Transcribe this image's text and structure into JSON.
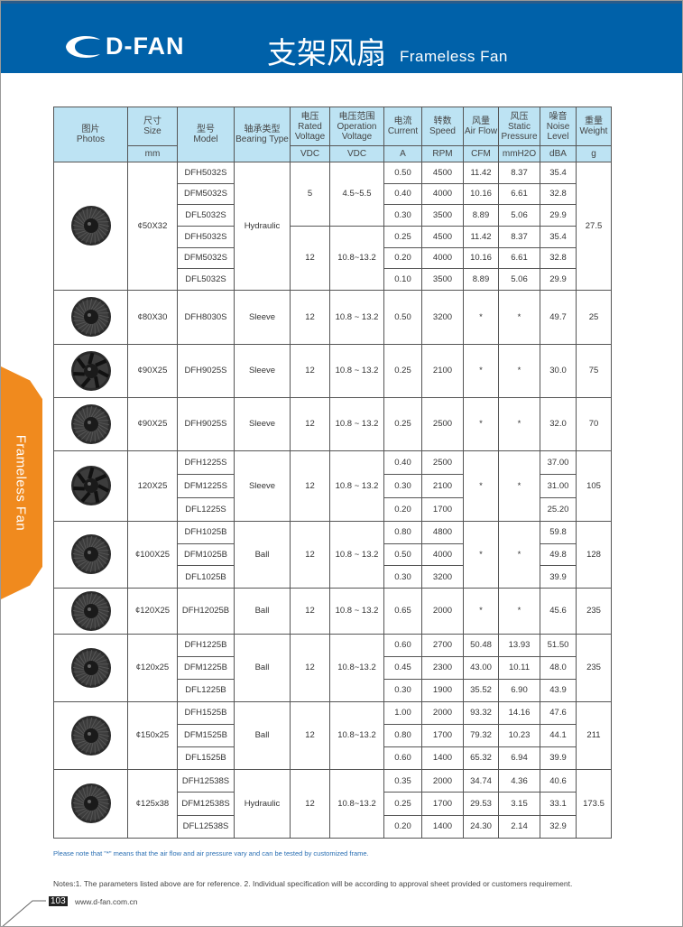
{
  "header": {
    "brand": "D-FAN",
    "title_cn": "支架风扇",
    "title_en": "Frameless Fan",
    "color": "#0061a9"
  },
  "side_tab": {
    "label": "Frameless Fan",
    "color": "#f08a1e"
  },
  "table": {
    "columns": [
      {
        "cn": "图片",
        "en": "Photos",
        "unit": ""
      },
      {
        "cn": "尺寸",
        "en": "Size",
        "unit": "mm"
      },
      {
        "cn": "型号",
        "en": "Model",
        "unit": ""
      },
      {
        "cn": "轴承类型",
        "en": "Bearing Type",
        "unit": ""
      },
      {
        "cn": "电压",
        "en": "Rated Voltage",
        "unit": "VDC"
      },
      {
        "cn": "电压范围",
        "en": "Operation Voltage",
        "unit": "VDC"
      },
      {
        "cn": "电流",
        "en": "Current",
        "unit": "A"
      },
      {
        "cn": "转数",
        "en": "Speed",
        "unit": "RPM"
      },
      {
        "cn": "风量",
        "en": "Air Flow",
        "unit": "CFM"
      },
      {
        "cn": "风压",
        "en": "Static Pressure",
        "unit": "mmH2O"
      },
      {
        "cn": "噪音",
        "en": "Noise Level",
        "unit": "dBA"
      },
      {
        "cn": "重量",
        "en": "Weight",
        "unit": "g"
      }
    ],
    "groups": [
      {
        "photo": "blower-fan-icon",
        "size": "¢50X32",
        "bearing": "Hydraulic",
        "weight": "27.5",
        "flow_merged": false,
        "blocks": [
          {
            "rated": "5",
            "range": "4.5~5.5",
            "rows": [
              {
                "model": "DFH5032S",
                "current": "0.50",
                "speed": "4500",
                "flow": "11.42",
                "pressure": "8.37",
                "noise": "35.4"
              },
              {
                "model": "DFM5032S",
                "current": "0.40",
                "speed": "4000",
                "flow": "10.16",
                "pressure": "6.61",
                "noise": "32.8"
              },
              {
                "model": "DFL5032S",
                "current": "0.30",
                "speed": "3500",
                "flow": "8.89",
                "pressure": "5.06",
                "noise": "29.9"
              }
            ]
          },
          {
            "rated": "12",
            "range": "10.8~13.2",
            "rows": [
              {
                "model": "DFH5032S",
                "current": "0.25",
                "speed": "4500",
                "flow": "11.42",
                "pressure": "8.37",
                "noise": "35.4"
              },
              {
                "model": "DFM5032S",
                "current": "0.20",
                "speed": "4000",
                "flow": "10.16",
                "pressure": "6.61",
                "noise": "32.8"
              },
              {
                "model": "DFL5032S",
                "current": "0.10",
                "speed": "3500",
                "flow": "8.89",
                "pressure": "5.06",
                "noise": "29.9"
              }
            ]
          }
        ]
      },
      {
        "photo": "blower-fan-icon",
        "size": "¢80X30",
        "bearing": "Sleeve",
        "weight": "25",
        "flow_merged": false,
        "blocks": [
          {
            "rated": "12",
            "range": "10.8 ~ 13.2",
            "rows": [
              {
                "model": "DFH8030S",
                "current": "0.50",
                "speed": "3200",
                "flow": "*",
                "pressure": "*",
                "noise": "49.7"
              }
            ]
          }
        ]
      },
      {
        "photo": "axial-fan-icon",
        "size": "¢90X25",
        "bearing": "Sleeve",
        "weight": "75",
        "flow_merged": false,
        "blocks": [
          {
            "rated": "12",
            "range": "10.8 ~ 13.2",
            "rows": [
              {
                "model": "DFH9025S",
                "current": "0.25",
                "speed": "2100",
                "flow": "*",
                "pressure": "*",
                "noise": "30.0"
              }
            ]
          }
        ]
      },
      {
        "photo": "blower-fan-icon",
        "size": "¢90X25",
        "bearing": "Sleeve",
        "weight": "70",
        "flow_merged": false,
        "blocks": [
          {
            "rated": "12",
            "range": "10.8 ~ 13.2",
            "rows": [
              {
                "model": "DFH9025S",
                "current": "0.25",
                "speed": "2500",
                "flow": "*",
                "pressure": "*",
                "noise": "32.0"
              }
            ]
          }
        ]
      },
      {
        "photo": "axial-fan-icon",
        "size": "120X25",
        "bearing": "Sleeve",
        "weight": "105",
        "flow_merged": true,
        "blocks": [
          {
            "rated": "12",
            "range": "10.8 ~ 13.2",
            "rows": [
              {
                "model": "DFH1225S",
                "current": "0.40",
                "speed": "2500",
                "flow": "*",
                "pressure": "*",
                "noise": "37.00"
              },
              {
                "model": "DFM1225S",
                "current": "0.30",
                "speed": "2100",
                "noise": "31.00"
              },
              {
                "model": "DFL1225S",
                "current": "0.20",
                "speed": "1700",
                "noise": "25.20"
              }
            ]
          }
        ]
      },
      {
        "photo": "blower-fan-icon",
        "size": "¢100X25",
        "bearing": "Ball",
        "weight": "128",
        "flow_merged": true,
        "blocks": [
          {
            "rated": "12",
            "range": "10.8 ~ 13.2",
            "rows": [
              {
                "model": "DFH1025B",
                "current": "0.80",
                "speed": "4800",
                "flow": "*",
                "pressure": "*",
                "noise": "59.8"
              },
              {
                "model": "DFM1025B",
                "current": "0.50",
                "speed": "4000",
                "noise": "49.8"
              },
              {
                "model": "DFL1025B",
                "current": "0.30",
                "speed": "3200",
                "noise": "39.9"
              }
            ]
          }
        ]
      },
      {
        "photo": "blower-fan-icon",
        "size": "¢120X25",
        "bearing": "Ball",
        "weight": "235",
        "flow_merged": false,
        "blocks": [
          {
            "rated": "12",
            "range": "10.8 ~ 13.2",
            "rows": [
              {
                "model": "DFH12025B",
                "current": "0.65",
                "speed": "2000",
                "flow": "*",
                "pressure": "*",
                "noise": "45.6"
              }
            ]
          }
        ]
      },
      {
        "photo": "blower-fan-icon",
        "size": "¢120x25",
        "bearing": "Ball",
        "weight": "235",
        "flow_merged": false,
        "blocks": [
          {
            "rated": "12",
            "range": "10.8~13.2",
            "rows": [
              {
                "model": "DFH1225B",
                "current": "0.60",
                "speed": "2700",
                "flow": "50.48",
                "pressure": "13.93",
                "noise": "51.50"
              },
              {
                "model": "DFM1225B",
                "current": "0.45",
                "speed": "2300",
                "flow": "43.00",
                "pressure": "10.11",
                "noise": "48.0"
              },
              {
                "model": "DFL1225B",
                "current": "0.30",
                "speed": "1900",
                "flow": "35.52",
                "pressure": "6.90",
                "noise": "43.9"
              }
            ]
          }
        ]
      },
      {
        "photo": "blower-fan-icon",
        "size": "¢150x25",
        "bearing": "Ball",
        "weight": "211",
        "flow_merged": false,
        "blocks": [
          {
            "rated": "12",
            "range": "10.8~13.2",
            "rows": [
              {
                "model": "DFH1525B",
                "current": "1.00",
                "speed": "2000",
                "flow": "93.32",
                "pressure": "14.16",
                "noise": "47.6"
              },
              {
                "model": "DFM1525B",
                "current": "0.80",
                "speed": "1700",
                "flow": "79.32",
                "pressure": "10.23",
                "noise": "44.1"
              },
              {
                "model": "DFL1525B",
                "current": "0.60",
                "speed": "1400",
                "flow": "65.32",
                "pressure": "6.94",
                "noise": "39.9"
              }
            ]
          }
        ]
      },
      {
        "photo": "blower-fan-icon",
        "size": "¢125x38",
        "bearing": "Hydraulic",
        "weight": "173.5",
        "flow_merged": false,
        "blocks": [
          {
            "rated": "12",
            "range": "10.8~13.2",
            "rows": [
              {
                "model": "DFH12538S",
                "current": "0.35",
                "speed": "2000",
                "flow": "34.74",
                "pressure": "4.36",
                "noise": "40.6"
              },
              {
                "model": "DFM12538S",
                "current": "0.25",
                "speed": "1700",
                "flow": "29.53",
                "pressure": "3.15",
                "noise": "33.1"
              },
              {
                "model": "DFL12538S",
                "current": "0.20",
                "speed": "1400",
                "flow": "24.30",
                "pressure": "2.14",
                "noise": "32.9"
              }
            ]
          }
        ]
      }
    ]
  },
  "footer": {
    "note_blue": "Please note that  \"*\"  means that the air flow and air pressure vary and can be tested by customized frame.",
    "notes": "Notes:1. The parameters listed above are for reference.    2. Individual specification will be according to approval sheet provided or customers requirement.",
    "page_number": "103",
    "url": "www.d-fan.com.cn"
  }
}
